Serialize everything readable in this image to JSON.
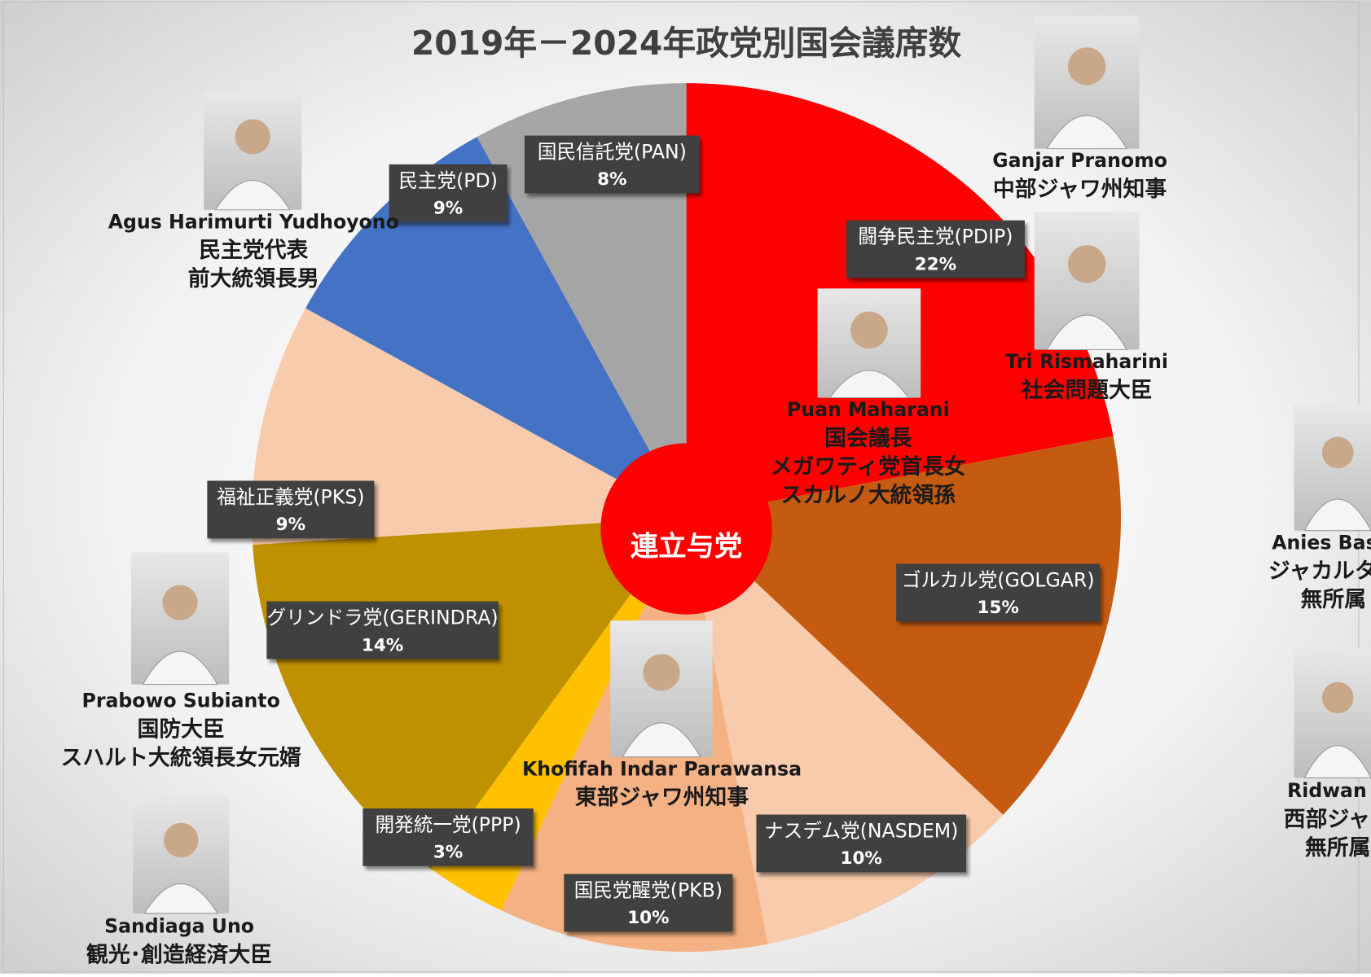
{
  "chart_data": {
    "type": "pie",
    "title": "2019年－2024年政党別国会議席数",
    "categories": [
      "闘争民主党(PDIP)",
      "ゴルカル党(GOLGAR)",
      "ナスデム党(NASDEM)",
      "国民党醒党(PKB)",
      "開発統一党(PPP)",
      "グリンドラ党(GERINDRA)",
      "福祉正義党(PKS)",
      "民主党(PD)",
      "国民信託党(PAN)"
    ],
    "values": [
      22,
      15,
      10,
      10,
      3,
      14,
      9,
      9,
      8
    ],
    "value_labels": [
      "22%",
      "15%",
      "10%",
      "10%",
      "3%",
      "14%",
      "9%",
      "9%",
      "8%"
    ],
    "colors": [
      "#ff0000",
      "#c55a11",
      "#f8cbad",
      "#f4b183",
      "#ffc000",
      "#bf9000",
      "#f8cbad",
      "#4472c4",
      "#a5a5a5"
    ],
    "center_label": "連立与党"
  },
  "people": [
    {
      "lines": [
        "Ganjar Pranomo",
        "中部ジャワ州知事"
      ]
    },
    {
      "lines": [
        "Tri Rismaharini",
        "社会問題大臣"
      ]
    },
    {
      "lines": [
        "Puan Maharani",
        "国会議長",
        "メガワティ党首長女",
        "スカルノ大統領孫"
      ]
    },
    {
      "lines": [
        "Agus Harimurti Yudhoyono",
        "民主党代表",
        "前大統領長男"
      ]
    },
    {
      "lines": [
        "Prabowo Subianto",
        "国防大臣",
        "スハルト大統領長女元婿"
      ]
    },
    {
      "lines": [
        "Sandiaga Uno",
        "観光･創造経済大臣"
      ]
    },
    {
      "lines": [
        "Khofifah Indar Parawansa",
        "東部ジャワ州知事"
      ]
    },
    {
      "lines": [
        "Anies Basw",
        "ジャカルタ州",
        "無所属"
      ]
    },
    {
      "lines": [
        "Ridwan K",
        "西部ジャワ",
        "無所属"
      ]
    }
  ]
}
